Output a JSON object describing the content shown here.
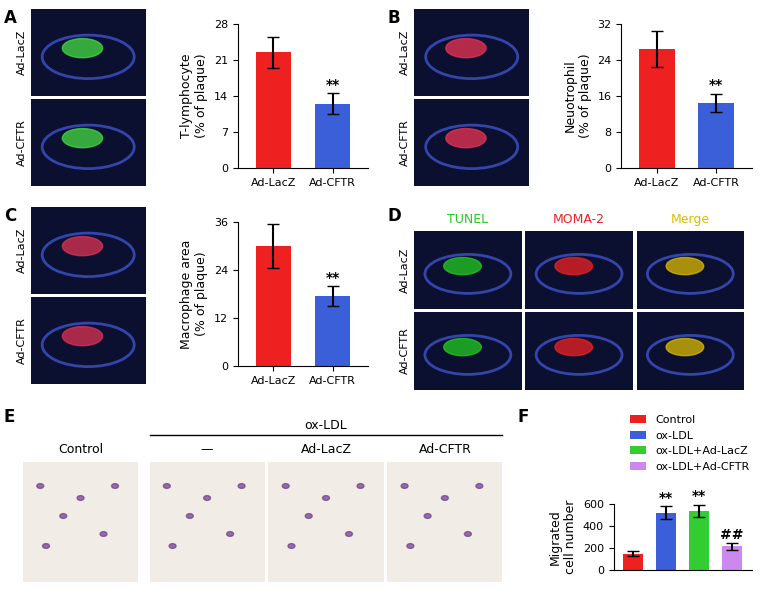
{
  "chart_data": [
    {
      "type": "bar",
      "panel": "A",
      "y_label": "T-lymphocyte\n(% of plaque)",
      "categories": [
        "Ad-LacZ",
        "Ad-CFTR"
      ],
      "values": [
        22.5,
        12.5
      ],
      "errors": [
        3,
        2
      ],
      "colors": [
        "#ee2020",
        "#3a5fd9"
      ],
      "ylim": [
        0,
        28
      ],
      "yticks": [
        0,
        7,
        14,
        21,
        28
      ],
      "annotations": [
        {
          "category": "Ad-CFTR",
          "text": "**"
        }
      ]
    },
    {
      "type": "bar",
      "panel": "B",
      "y_label": "Neuotrophil\n(% of plaque)",
      "categories": [
        "Ad-LacZ",
        "Ad-CFTR"
      ],
      "values": [
        26.5,
        14.5
      ],
      "errors": [
        4,
        2
      ],
      "colors": [
        "#ee2020",
        "#3a5fd9"
      ],
      "ylim": [
        0,
        32
      ],
      "yticks": [
        0,
        8,
        16,
        24,
        32
      ],
      "annotations": [
        {
          "category": "Ad-CFTR",
          "text": "**"
        }
      ]
    },
    {
      "type": "bar",
      "panel": "C",
      "y_label": "Macrophage area\n(% of plaque)",
      "categories": [
        "Ad-LacZ",
        "Ad-CFTR"
      ],
      "values": [
        30,
        17.5
      ],
      "errors": [
        5.5,
        2.5
      ],
      "colors": [
        "#ee2020",
        "#3a5fd9"
      ],
      "ylim": [
        0,
        36
      ],
      "yticks": [
        0,
        12,
        24,
        36
      ],
      "annotations": [
        {
          "category": "Ad-CFTR",
          "text": "**"
        }
      ]
    },
    {
      "type": "bar",
      "panel": "F",
      "y_label": "Migrated\ncell number",
      "categories": [
        "Control",
        "ox-LDL",
        "ox-LDL+Ad-LacZ",
        "ox-LDL+Ad-CFTR"
      ],
      "values": [
        150,
        520,
        540,
        215
      ],
      "errors": [
        25,
        60,
        55,
        30
      ],
      "colors": [
        "#ee2020",
        "#3a5fd9",
        "#33cc33",
        "#cc88ee"
      ],
      "ylim": [
        0,
        600
      ],
      "yticks": [
        0,
        200,
        400,
        600
      ],
      "tick_labels": "y",
      "legend": "upper right",
      "annotations": [
        {
          "category": "ox-LDL",
          "text": "**"
        },
        {
          "category": "ox-LDL+Ad-LacZ",
          "text": "**"
        },
        {
          "category": "ox-LDL+Ad-CFTR",
          "text": "##"
        }
      ]
    }
  ],
  "images": {
    "A": {
      "rows": [
        "Ad-LacZ",
        "Ad-CFTR"
      ],
      "stain_color": "#44dd44"
    },
    "B": {
      "rows": [
        "Ad-LacZ",
        "Ad-CFTR"
      ],
      "stain_color": "#ee3355"
    },
    "C": {
      "rows": [
        "Ad-LacZ",
        "Ad-CFTR"
      ],
      "stain_color": "#dd3355"
    },
    "D": {
      "rows": [
        "Ad-LacZ",
        "Ad-CFTR"
      ],
      "columns": [
        {
          "label": "TUNEL",
          "color": "#22cc22"
        },
        {
          "label": "MOMA-2",
          "color": "#ee2222"
        },
        {
          "label": "Merge",
          "color": "#ddbb00"
        }
      ]
    },
    "E": {
      "columns": [
        "Control",
        "—",
        "Ad-LacZ",
        "Ad-CFTR"
      ],
      "group_label": "ox-LDL"
    }
  }
}
